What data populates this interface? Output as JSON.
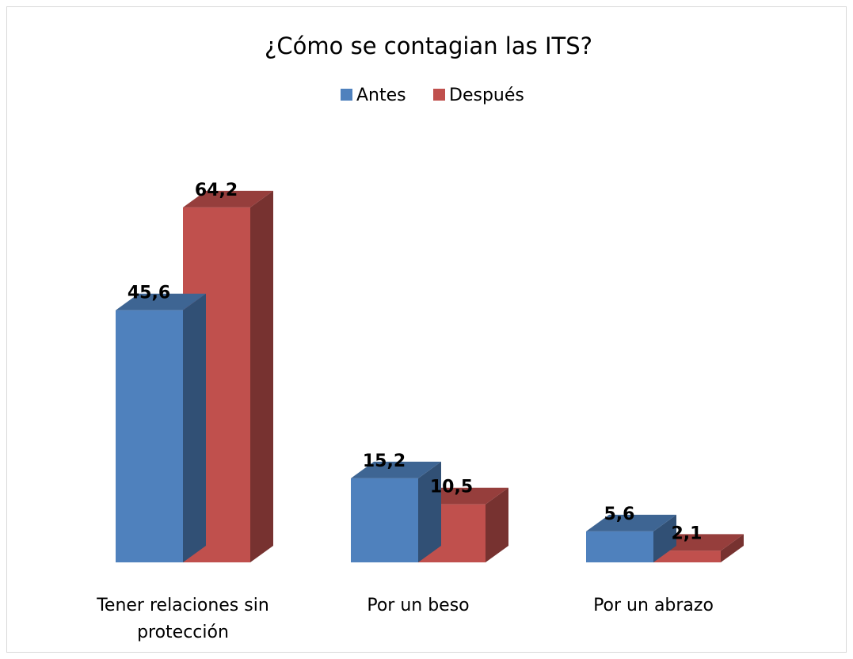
{
  "chart_data": {
    "type": "bar3d",
    "title": "¿Cómo se contagian las ITS?",
    "categories": [
      "Tener relaciones sin protección",
      "Por un beso",
      "Por un abrazo"
    ],
    "series": [
      {
        "name": "Antes",
        "color": "#4f81bd",
        "values": [
          45.6,
          15.2,
          5.6
        ],
        "value_labels": [
          "45,6",
          "15,2",
          "5,6"
        ]
      },
      {
        "name": "Después",
        "color": "#c0504d",
        "values": [
          64.2,
          10.5,
          2.1
        ],
        "value_labels": [
          "64,2",
          "10,5",
          "2,1"
        ]
      }
    ],
    "legend": "top"
  }
}
